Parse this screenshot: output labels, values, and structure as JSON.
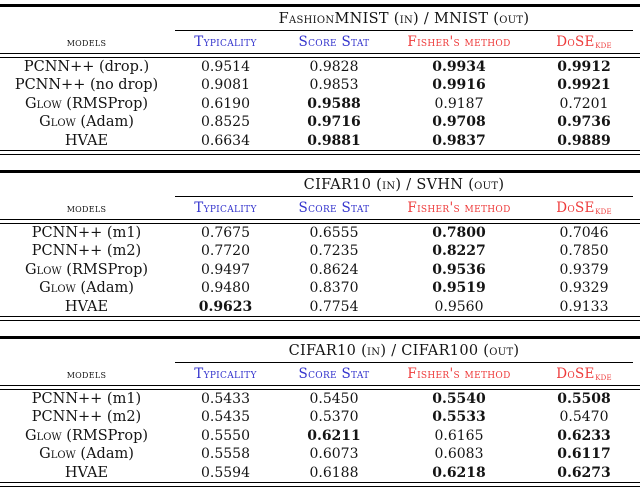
{
  "colors": {
    "blue": "#3434cd",
    "red": "#ee3b3b",
    "rule": "#000000",
    "text": "#141414",
    "background": "#ffffff"
  },
  "tables": [
    {
      "group_header": "FashionMNIST (in) / MNIST (out)",
      "models_header": "models",
      "columns": [
        {
          "label": "Typicality",
          "color": "blue"
        },
        {
          "label": "Score Stat",
          "color": "blue"
        },
        {
          "label": "Fisher's method",
          "color": "red"
        },
        {
          "label": "DoSE",
          "sub": "kde",
          "color": "red"
        }
      ],
      "rows": [
        {
          "model": [
            {
              "t": "PCNN++ (drop.)"
            }
          ],
          "values": [
            {
              "text": "0.9514",
              "bold": false
            },
            {
              "text": "0.9828",
              "bold": false
            },
            {
              "text": "0.9934",
              "bold": true
            },
            {
              "text": "0.9912",
              "bold": true
            }
          ]
        },
        {
          "model": [
            {
              "t": "PCNN++ (no drop)"
            }
          ],
          "values": [
            {
              "text": "0.9081",
              "bold": false
            },
            {
              "text": "0.9853",
              "bold": false
            },
            {
              "text": "0.9916",
              "bold": true
            },
            {
              "text": "0.9921",
              "bold": true
            }
          ]
        },
        {
          "model": [
            {
              "t": "G"
            },
            {
              "t": "low",
              "sc": true
            },
            {
              "t": " (RMSProp)"
            }
          ],
          "values": [
            {
              "text": "0.6190",
              "bold": false
            },
            {
              "text": "0.9588",
              "bold": true
            },
            {
              "text": "0.9187",
              "bold": false
            },
            {
              "text": "0.7201",
              "bold": false
            }
          ]
        },
        {
          "model": [
            {
              "t": "G"
            },
            {
              "t": "low",
              "sc": true
            },
            {
              "t": " (Adam)"
            }
          ],
          "values": [
            {
              "text": "0.8525",
              "bold": false
            },
            {
              "text": "0.9716",
              "bold": true
            },
            {
              "text": "0.9708",
              "bold": true
            },
            {
              "text": "0.9736",
              "bold": true
            }
          ]
        },
        {
          "model": [
            {
              "t": "HVAE"
            }
          ],
          "values": [
            {
              "text": "0.6634",
              "bold": false
            },
            {
              "text": "0.9881",
              "bold": true
            },
            {
              "text": "0.9837",
              "bold": true
            },
            {
              "text": "0.9889",
              "bold": true
            }
          ]
        }
      ]
    },
    {
      "group_header": "CIFAR10 (in) / SVHN (out)",
      "models_header": "models",
      "columns": [
        {
          "label": "Typicality",
          "color": "blue"
        },
        {
          "label": "Score Stat",
          "color": "blue"
        },
        {
          "label": "Fisher's method",
          "color": "red"
        },
        {
          "label": "DoSE",
          "sub": "kde",
          "color": "red"
        }
      ],
      "rows": [
        {
          "model": [
            {
              "t": "PCNN++ (m1)"
            }
          ],
          "values": [
            {
              "text": "0.7675",
              "bold": false
            },
            {
              "text": "0.6555",
              "bold": false
            },
            {
              "text": "0.7800",
              "bold": true
            },
            {
              "text": "0.7046",
              "bold": false
            }
          ]
        },
        {
          "model": [
            {
              "t": "PCNN++ (m2)"
            }
          ],
          "values": [
            {
              "text": "0.7720",
              "bold": false
            },
            {
              "text": "0.7235",
              "bold": false
            },
            {
              "text": "0.8227",
              "bold": true
            },
            {
              "text": "0.7850",
              "bold": false
            }
          ]
        },
        {
          "model": [
            {
              "t": "G"
            },
            {
              "t": "low",
              "sc": true
            },
            {
              "t": " (RMSProp)"
            }
          ],
          "values": [
            {
              "text": "0.9497",
              "bold": false
            },
            {
              "text": "0.8624",
              "bold": false
            },
            {
              "text": "0.9536",
              "bold": true
            },
            {
              "text": "0.9379",
              "bold": false
            }
          ]
        },
        {
          "model": [
            {
              "t": "G"
            },
            {
              "t": "low",
              "sc": true
            },
            {
              "t": " (Adam)"
            }
          ],
          "values": [
            {
              "text": "0.9480",
              "bold": false
            },
            {
              "text": "0.8370",
              "bold": false
            },
            {
              "text": "0.9519",
              "bold": true
            },
            {
              "text": "0.9329",
              "bold": false
            }
          ]
        },
        {
          "model": [
            {
              "t": "HVAE"
            }
          ],
          "values": [
            {
              "text": "0.9623",
              "bold": true
            },
            {
              "text": "0.7754",
              "bold": false
            },
            {
              "text": "0.9560",
              "bold": false
            },
            {
              "text": "0.9133",
              "bold": false
            }
          ]
        }
      ]
    },
    {
      "group_header": "CIFAR10 (in) / CIFAR100 (out)",
      "models_header": "models",
      "columns": [
        {
          "label": "Typicality",
          "color": "blue"
        },
        {
          "label": "Score Stat",
          "color": "blue"
        },
        {
          "label": "Fisher's method",
          "color": "red"
        },
        {
          "label": "DoSE",
          "sub": "kde",
          "color": "red"
        }
      ],
      "rows": [
        {
          "model": [
            {
              "t": "PCNN++ (m1)"
            }
          ],
          "values": [
            {
              "text": "0.5433",
              "bold": false
            },
            {
              "text": "0.5450",
              "bold": false
            },
            {
              "text": "0.5540",
              "bold": true
            },
            {
              "text": "0.5508",
              "bold": true
            }
          ]
        },
        {
          "model": [
            {
              "t": "PCNN++ (m2)"
            }
          ],
          "values": [
            {
              "text": "0.5435",
              "bold": false
            },
            {
              "text": "0.5370",
              "bold": false
            },
            {
              "text": "0.5533",
              "bold": true
            },
            {
              "text": "0.5470",
              "bold": false
            }
          ]
        },
        {
          "model": [
            {
              "t": "G"
            },
            {
              "t": "low",
              "sc": true
            },
            {
              "t": " (RMSProp)"
            }
          ],
          "values": [
            {
              "text": "0.5550",
              "bold": false
            },
            {
              "text": "0.6211",
              "bold": true
            },
            {
              "text": "0.6165",
              "bold": false
            },
            {
              "text": "0.6233",
              "bold": true
            }
          ]
        },
        {
          "model": [
            {
              "t": "G"
            },
            {
              "t": "low",
              "sc": true
            },
            {
              "t": " (Adam)"
            }
          ],
          "values": [
            {
              "text": "0.5558",
              "bold": false
            },
            {
              "text": "0.6073",
              "bold": false
            },
            {
              "text": "0.6083",
              "bold": false
            },
            {
              "text": "0.6117",
              "bold": true
            }
          ]
        },
        {
          "model": [
            {
              "t": "HVAE"
            }
          ],
          "values": [
            {
              "text": "0.5594",
              "bold": false
            },
            {
              "text": "0.6188",
              "bold": false
            },
            {
              "text": "0.6218",
              "bold": true
            },
            {
              "text": "0.6273",
              "bold": true
            }
          ]
        }
      ]
    }
  ]
}
